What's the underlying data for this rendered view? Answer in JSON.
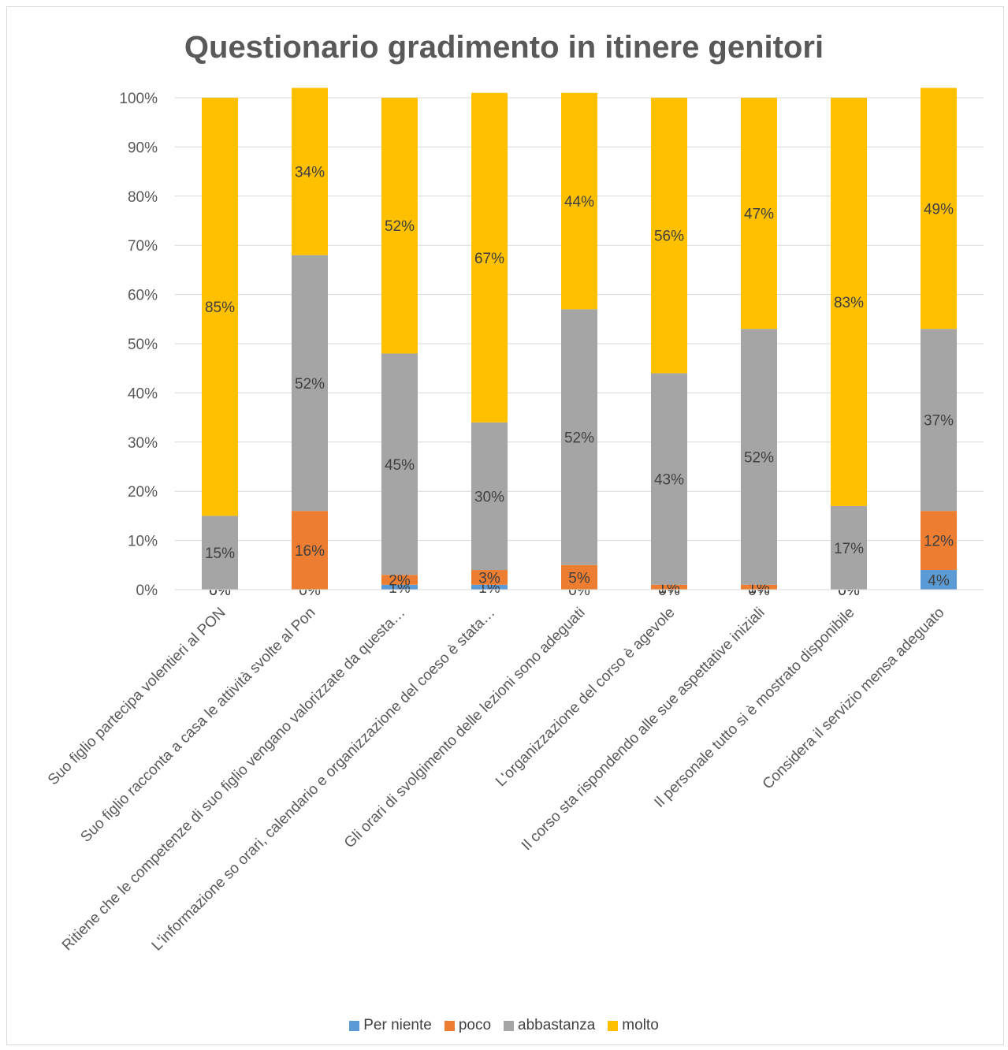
{
  "chart_data": {
    "type": "bar",
    "stacked": true,
    "percent_stacked": true,
    "title": "Questionario gradimento in itinere genitori",
    "categories": [
      "Suo figlio partecipa volentieri al PON",
      "Suo figlio racconta a casa le attività svolte al Pon",
      "Ritiene che le competenze di suo figlio vengano valorizzate da questa…",
      "L'informazione so orari, calendario e organizzazione del coeso è stata…",
      "Gli orari di svolgimento delle lezioni sono adeguati",
      "L'organizzazione  del corso è agevole",
      "Il corso sta rispondendo alle sue aspettative iniziali",
      "Il personale tutto si è mostrato disponibile",
      "Considera il servizio mensa adeguato"
    ],
    "series": [
      {
        "name": "Per niente",
        "color": "#5b9bd5",
        "values": [
          0,
          0,
          1,
          1,
          0,
          0,
          0,
          0,
          4
        ]
      },
      {
        "name": "poco",
        "color": "#ed7d31",
        "values": [
          0,
          16,
          2,
          3,
          5,
          1,
          1,
          0,
          12
        ]
      },
      {
        "name": "abbastanza",
        "color": "#a5a5a5",
        "values": [
          15,
          52,
          45,
          30,
          52,
          43,
          52,
          17,
          37
        ]
      },
      {
        "name": "molto",
        "color": "#ffc000",
        "values": [
          85,
          34,
          52,
          67,
          44,
          56,
          47,
          83,
          49
        ]
      }
    ],
    "yticks": [
      "0%",
      "10%",
      "20%",
      "30%",
      "40%",
      "50%",
      "60%",
      "70%",
      "80%",
      "90%",
      "100%"
    ],
    "ylim": [
      0,
      100
    ],
    "grid": true,
    "legend_position": "bottom"
  }
}
